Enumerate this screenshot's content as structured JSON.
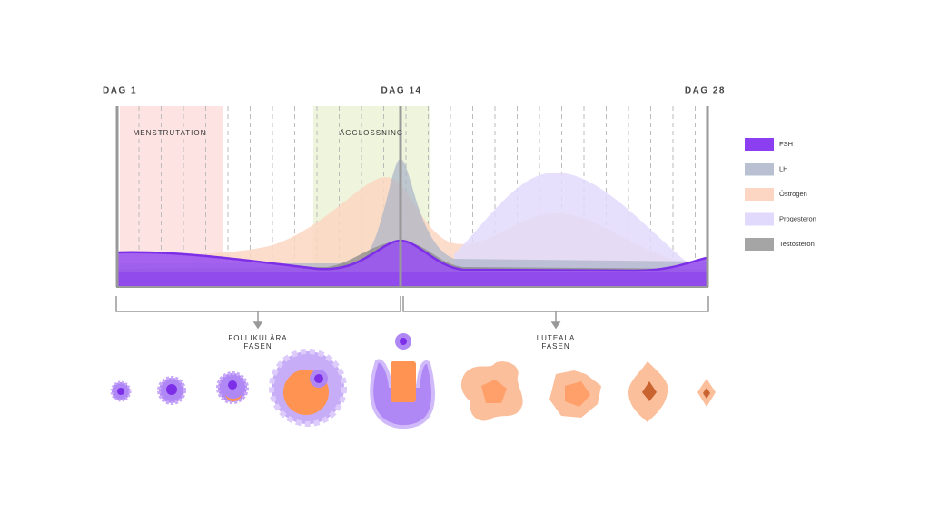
{
  "markers": {
    "day_start": "DAG 1",
    "day_mid": "DAG 14",
    "day_end": "DAG 28"
  },
  "phases": {
    "menstruation": "MENSTRUTATION",
    "ovulation": "ÄGGLOSSNING"
  },
  "legend": [
    {
      "name": "FSH",
      "color": "#8b3ff0"
    },
    {
      "name": "LH",
      "color": "#b8c0d2"
    },
    {
      "name": "Östrogen",
      "color": "#fcd6c2"
    },
    {
      "name": "Progesteron",
      "color": "#e2dafc"
    },
    {
      "name": "Testosteron",
      "color": "#a5a5a5"
    }
  ],
  "cycle_phases": {
    "follicular": [
      "FOLLIKULÄRA",
      "FASEN"
    ],
    "luteal": [
      "LUTEALA",
      "FASEN"
    ]
  }
}
